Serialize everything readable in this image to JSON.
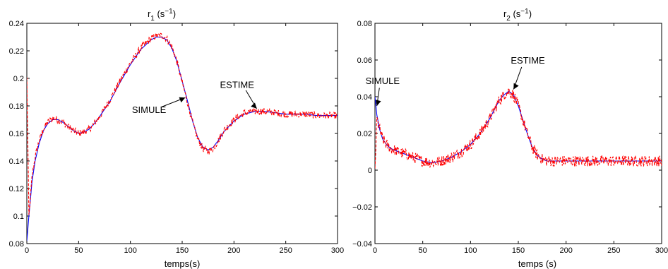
{
  "figure": {
    "panels": [
      {
        "title": "r",
        "title_sub": "1",
        "title_unit": " (s",
        "title_sup": "−1",
        "title_close": ")",
        "xlabel": "temps(s)",
        "ylabel": ""
      },
      {
        "title": "r",
        "title_sub": "2",
        "title_unit": " (s",
        "title_sup": "−1",
        "title_close": ")",
        "xlabel": "temps (s)",
        "ylabel": ""
      }
    ]
  },
  "chart_data": [
    {
      "type": "line",
      "title": "r1 (s−1)",
      "xlabel": "temps(s)",
      "ylabel": "",
      "xlim": [
        0,
        300
      ],
      "ylim": [
        0.08,
        0.24
      ],
      "xticks": [
        0,
        50,
        100,
        150,
        200,
        250,
        300
      ],
      "xtick_labels": [
        "0",
        "50",
        "100",
        "150",
        "200",
        "250",
        "300"
      ],
      "yticks": [
        0.08,
        0.1,
        0.12,
        0.14,
        0.16,
        0.18,
        0.2,
        0.22,
        0.24
      ],
      "ytick_labels": [
        "0.08",
        "0.1",
        "0.12",
        "0.14",
        "0.16",
        "0.18",
        "0.2",
        "0.22",
        "0.24"
      ],
      "grid": false,
      "colors": {
        "simulated": "#0000ff",
        "estimated": "#ff0000"
      },
      "series": [
        {
          "key": "simulated",
          "style": "solid",
          "x": [
            0,
            2,
            5,
            8,
            12,
            16,
            20,
            25,
            30,
            35,
            40,
            45,
            50,
            55,
            60,
            65,
            70,
            80,
            90,
            100,
            110,
            120,
            125,
            130,
            135,
            140,
            145,
            150,
            155,
            160,
            165,
            170,
            175,
            180,
            185,
            190,
            200,
            210,
            220,
            230,
            240,
            250,
            260,
            270,
            280,
            290,
            300
          ],
          "values": [
            0.082,
            0.1,
            0.125,
            0.14,
            0.153,
            0.162,
            0.167,
            0.17,
            0.17,
            0.168,
            0.165,
            0.162,
            0.16,
            0.161,
            0.163,
            0.167,
            0.172,
            0.183,
            0.197,
            0.21,
            0.221,
            0.228,
            0.23,
            0.23,
            0.228,
            0.222,
            0.212,
            0.198,
            0.184,
            0.169,
            0.157,
            0.15,
            0.148,
            0.15,
            0.155,
            0.161,
            0.169,
            0.174,
            0.176,
            0.176,
            0.175,
            0.174,
            0.174,
            0.174,
            0.173,
            0.173,
            0.173
          ],
          "noise": 0
        },
        {
          "key": "estimated",
          "style": "dashed",
          "x": [
            0,
            2,
            5,
            8,
            12,
            16,
            20,
            25,
            30,
            35,
            40,
            45,
            50,
            55,
            60,
            65,
            70,
            80,
            90,
            100,
            110,
            120,
            125,
            130,
            135,
            140,
            145,
            150,
            155,
            160,
            165,
            170,
            175,
            180,
            185,
            190,
            200,
            210,
            220,
            230,
            240,
            250,
            260,
            270,
            280,
            290,
            300
          ],
          "values": [
            0.2,
            0.1,
            0.128,
            0.143,
            0.155,
            0.163,
            0.168,
            0.171,
            0.17,
            0.168,
            0.165,
            0.162,
            0.16,
            0.161,
            0.163,
            0.167,
            0.172,
            0.184,
            0.198,
            0.211,
            0.222,
            0.229,
            0.231,
            0.231,
            0.229,
            0.223,
            0.212,
            0.197,
            0.183,
            0.168,
            0.156,
            0.149,
            0.147,
            0.149,
            0.155,
            0.162,
            0.17,
            0.175,
            0.176,
            0.176,
            0.175,
            0.174,
            0.174,
            0.174,
            0.173,
            0.173,
            0.173
          ],
          "noise": 0.0025
        }
      ],
      "annotations": [
        {
          "text": "SIMULE",
          "x": 153,
          "y": 0.186,
          "label_x": 118,
          "label_y": 0.175
        },
        {
          "text": "ESTIME",
          "x": 222,
          "y": 0.178,
          "label_x": 203,
          "label_y": 0.193
        }
      ]
    },
    {
      "type": "line",
      "title": "r2 (s−1)",
      "xlabel": "temps (s)",
      "ylabel": "",
      "xlim": [
        0,
        300
      ],
      "ylim": [
        -0.04,
        0.08
      ],
      "xticks": [
        0,
        50,
        100,
        150,
        200,
        250,
        300
      ],
      "xtick_labels": [
        "0",
        "50",
        "100",
        "150",
        "200",
        "250",
        "300"
      ],
      "yticks": [
        -0.04,
        -0.02,
        0,
        0.02,
        0.04,
        0.06,
        0.08
      ],
      "ytick_labels": [
        "−0.04",
        "−0.02",
        "0",
        "0.02",
        "0.04",
        "0.06",
        "0.08"
      ],
      "grid": false,
      "colors": {
        "simulated": "#0000ff",
        "estimated": "#ff0000"
      },
      "series": [
        {
          "key": "simulated",
          "style": "solid",
          "x": [
            0,
            2,
            5,
            8,
            12,
            16,
            20,
            25,
            30,
            40,
            50,
            60,
            70,
            80,
            90,
            100,
            110,
            120,
            125,
            130,
            135,
            140,
            145,
            150,
            155,
            160,
            165,
            170,
            175,
            180,
            190,
            200,
            220,
            240,
            260,
            280,
            300
          ],
          "values": [
            0.04,
            0.03,
            0.022,
            0.017,
            0.014,
            0.012,
            0.011,
            0.01,
            0.009,
            0.007,
            0.005,
            0.004,
            0.005,
            0.007,
            0.01,
            0.014,
            0.02,
            0.028,
            0.033,
            0.038,
            0.041,
            0.043,
            0.041,
            0.035,
            0.027,
            0.019,
            0.012,
            0.008,
            0.006,
            0.005,
            0.005,
            0.005,
            0.005,
            0.005,
            0.005,
            0.005,
            0.005
          ],
          "noise": 0
        },
        {
          "key": "estimated",
          "style": "dashed",
          "x": [
            0,
            2,
            5,
            8,
            12,
            16,
            20,
            25,
            30,
            40,
            50,
            60,
            70,
            80,
            90,
            100,
            110,
            120,
            125,
            130,
            135,
            140,
            145,
            150,
            155,
            160,
            165,
            170,
            175,
            180,
            190,
            200,
            220,
            240,
            260,
            280,
            300
          ],
          "values": [
            0.0,
            0.028,
            0.022,
            0.017,
            0.014,
            0.012,
            0.011,
            0.01,
            0.009,
            0.007,
            0.005,
            0.004,
            0.005,
            0.007,
            0.01,
            0.014,
            0.02,
            0.028,
            0.033,
            0.038,
            0.041,
            0.043,
            0.041,
            0.035,
            0.027,
            0.019,
            0.012,
            0.008,
            0.006,
            0.005,
            0.005,
            0.005,
            0.005,
            0.005,
            0.005,
            0.005,
            0.005
          ],
          "noise": 0.003
        }
      ],
      "annotations": [
        {
          "text": "SIMULE",
          "x": 2,
          "y": 0.035,
          "label_x": 8,
          "label_y": 0.047
        },
        {
          "text": "ESTIME",
          "x": 145,
          "y": 0.044,
          "label_x": 160,
          "label_y": 0.058
        }
      ]
    }
  ]
}
